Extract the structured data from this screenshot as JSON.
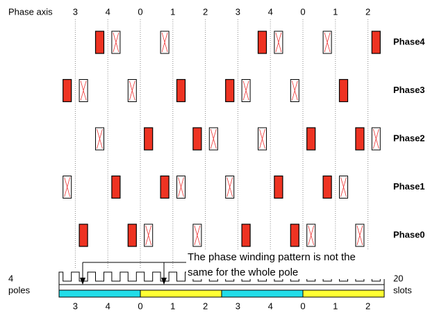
{
  "axis_title": "Phase axis",
  "top_axis": [
    "3",
    "4",
    "0",
    "1",
    "2",
    "3",
    "4",
    "0",
    "1",
    "2"
  ],
  "phases": [
    "Phase4",
    "Phase3",
    "Phase2",
    "Phase1",
    "Phase0"
  ],
  "annotation": [
    "The phase winding pattern is not the",
    "same for the whole pole"
  ],
  "left_label": [
    "4",
    "poles"
  ],
  "right_label": [
    "20",
    "slots"
  ],
  "bottom_axis": [
    "3",
    "4",
    "0",
    "1",
    "2",
    "3",
    "4",
    "0",
    "1",
    "2"
  ]
}
